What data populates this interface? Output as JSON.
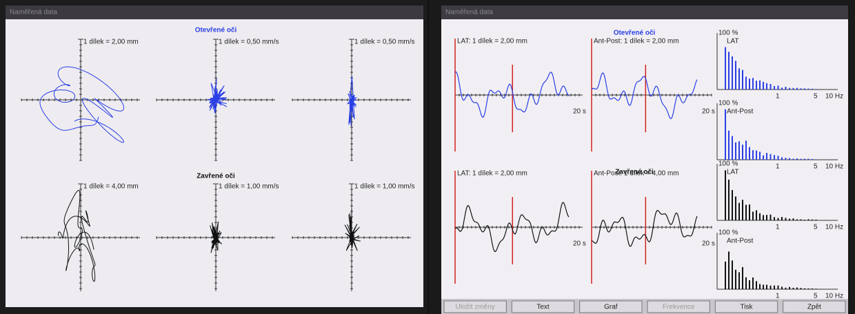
{
  "screens": [
    {
      "title": "Naměřená data",
      "sections": [
        {
          "heading": "Otevřené oči",
          "scales": [
            "1 dílek = 2,00 mm",
            "1 dílek = 0,50 mm/s",
            "1 dílek = 0,50 mm/s"
          ]
        },
        {
          "heading": "Zavřené oči",
          "scales": [
            "1 dílek = 4,00 mm",
            "1 dílek = 1,00 mm/s",
            "1 dílek = 1,00 mm/s"
          ]
        }
      ]
    },
    {
      "title": "Naměřená data",
      "sections": [
        {
          "heading": "Otevřené oči",
          "scales": [
            "LAT: 1 dílek = 2,00 mm",
            "Ant-Post: 1 dílek = 2,00 mm"
          ],
          "time_labels": [
            "20 s",
            "20 s"
          ]
        },
        {
          "heading": "Zavřené oči",
          "scales": [
            "LAT: 1 dílek = 2,00 mm",
            "Ant-Post: 1 dílek = 4,00 mm"
          ],
          "time_labels": [
            "20 s",
            "20 s"
          ]
        }
      ],
      "spectra": [
        {
          "top": "100 %",
          "name": "LAT",
          "ticks": [
            "1",
            "5",
            "10 Hz"
          ]
        },
        {
          "top": "100 %",
          "name": "Ant-Post",
          "ticks": [
            "1",
            "5",
            "10 Hz"
          ]
        },
        {
          "top": "100 %",
          "name": "LAT",
          "ticks": [
            "1",
            "5",
            "10 Hz"
          ]
        },
        {
          "top": "100 %",
          "name": "Ant-Post",
          "ticks": [
            "1",
            "5",
            "10 Hz"
          ]
        }
      ],
      "buttons": [
        "Uložit změny",
        "Text",
        "Graf",
        "Frekvence",
        "Tisk",
        "Zpět"
      ]
    }
  ]
}
